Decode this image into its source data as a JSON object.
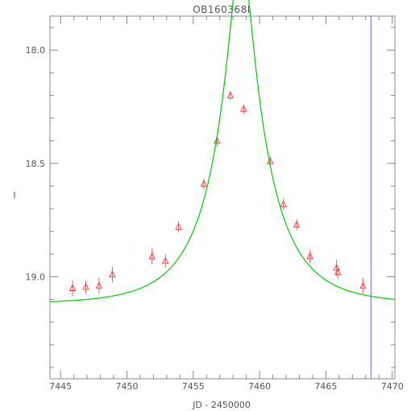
{
  "chart_data": {
    "type": "scatter",
    "title": "OB160368I",
    "xlabel": "JD - 2450000",
    "ylabel": "I",
    "xlim": [
      7444.2,
      7470.2
    ],
    "ylim": [
      19.45,
      17.85
    ],
    "y_inverted": true,
    "x_ticks": [
      7445,
      7450,
      7455,
      7460,
      7465,
      7470
    ],
    "x_tick_labels": [
      "7445",
      "7450",
      "7455",
      "7460",
      "7465",
      "7470"
    ],
    "y_ticks": [
      18.0,
      18.5,
      19.0
    ],
    "y_tick_labels": [
      "18.0",
      "18.5",
      "19.0"
    ],
    "grid": false,
    "series": [
      {
        "kind": "points",
        "marker": "triangle",
        "color": "#ff3333",
        "points": [
          {
            "x": 7445.9,
            "y": 19.05,
            "err": 0.035
          },
          {
            "x": 7446.9,
            "y": 19.045,
            "err": 0.03
          },
          {
            "x": 7447.9,
            "y": 19.04,
            "err": 0.035
          },
          {
            "x": 7448.9,
            "y": 18.99,
            "err": 0.035
          },
          {
            "x": 7451.9,
            "y": 18.91,
            "err": 0.035
          },
          {
            "x": 7452.9,
            "y": 18.93,
            "err": 0.03
          },
          {
            "x": 7453.9,
            "y": 18.78,
            "err": 0.025
          },
          {
            "x": 7455.8,
            "y": 18.59,
            "err": 0.025
          },
          {
            "x": 7456.8,
            "y": 18.4,
            "err": 0.025
          },
          {
            "x": 7457.8,
            "y": 18.2,
            "err": 0.02
          },
          {
            "x": 7458.8,
            "y": 18.26,
            "err": 0.02
          },
          {
            "x": 7460.8,
            "y": 18.49,
            "err": 0.025
          },
          {
            "x": 7461.8,
            "y": 18.68,
            "err": 0.025
          },
          {
            "x": 7462.8,
            "y": 18.77,
            "err": 0.025
          },
          {
            "x": 7463.8,
            "y": 18.91,
            "err": 0.03
          },
          {
            "x": 7465.8,
            "y": 18.96,
            "err": 0.035
          },
          {
            "x": 7465.9,
            "y": 18.98,
            "err": 0.03
          },
          {
            "x": 7467.8,
            "y": 19.04,
            "err": 0.035
          }
        ]
      },
      {
        "kind": "model",
        "color": "#00cc00",
        "model": {
          "t0": 7458.6,
          "u0": 0.18,
          "tE": 4.5,
          "baseline": 19.12,
          "flux_scale": 0.68
        },
        "x_range": [
          7444.2,
          7470.2
        ]
      },
      {
        "kind": "vline",
        "color": "#6666ff",
        "x": 7468.4
      }
    ]
  }
}
